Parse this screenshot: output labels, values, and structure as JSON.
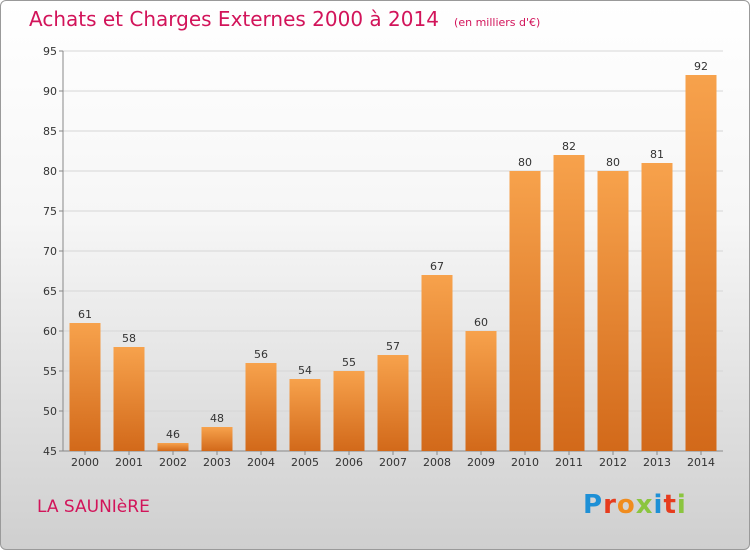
{
  "header": {
    "title": "Achats et Charges Externes 2000 à 2014",
    "subtitle": "(en milliers d'€)"
  },
  "footer": {
    "commune": "LA SAUNIèRE",
    "logo_text": "Proxiti"
  },
  "colors": {
    "title": "#d2145a",
    "bar_light": "#f7a24c",
    "bar_dark": "#d2691a",
    "logo_p": "#1e90d6",
    "logo_r": "#e63c1e",
    "logo_o": "#f08c1e",
    "logo_x": "#8bc53f",
    "logo_i": "#1e90d6",
    "logo_t": "#e63c1e",
    "logo_i2": "#8bc53f"
  },
  "chart_data": {
    "type": "bar",
    "categories": [
      "2000",
      "2001",
      "2002",
      "2003",
      "2004",
      "2005",
      "2006",
      "2007",
      "2008",
      "2009",
      "2010",
      "2011",
      "2012",
      "2013",
      "2014"
    ],
    "values": [
      61,
      58,
      46,
      48,
      56,
      54,
      55,
      57,
      67,
      60,
      80,
      82,
      80,
      81,
      92
    ],
    "ylim": [
      45,
      95
    ],
    "yticks": [
      45,
      50,
      55,
      60,
      65,
      70,
      75,
      80,
      85,
      90,
      95
    ],
    "grid": true
  }
}
